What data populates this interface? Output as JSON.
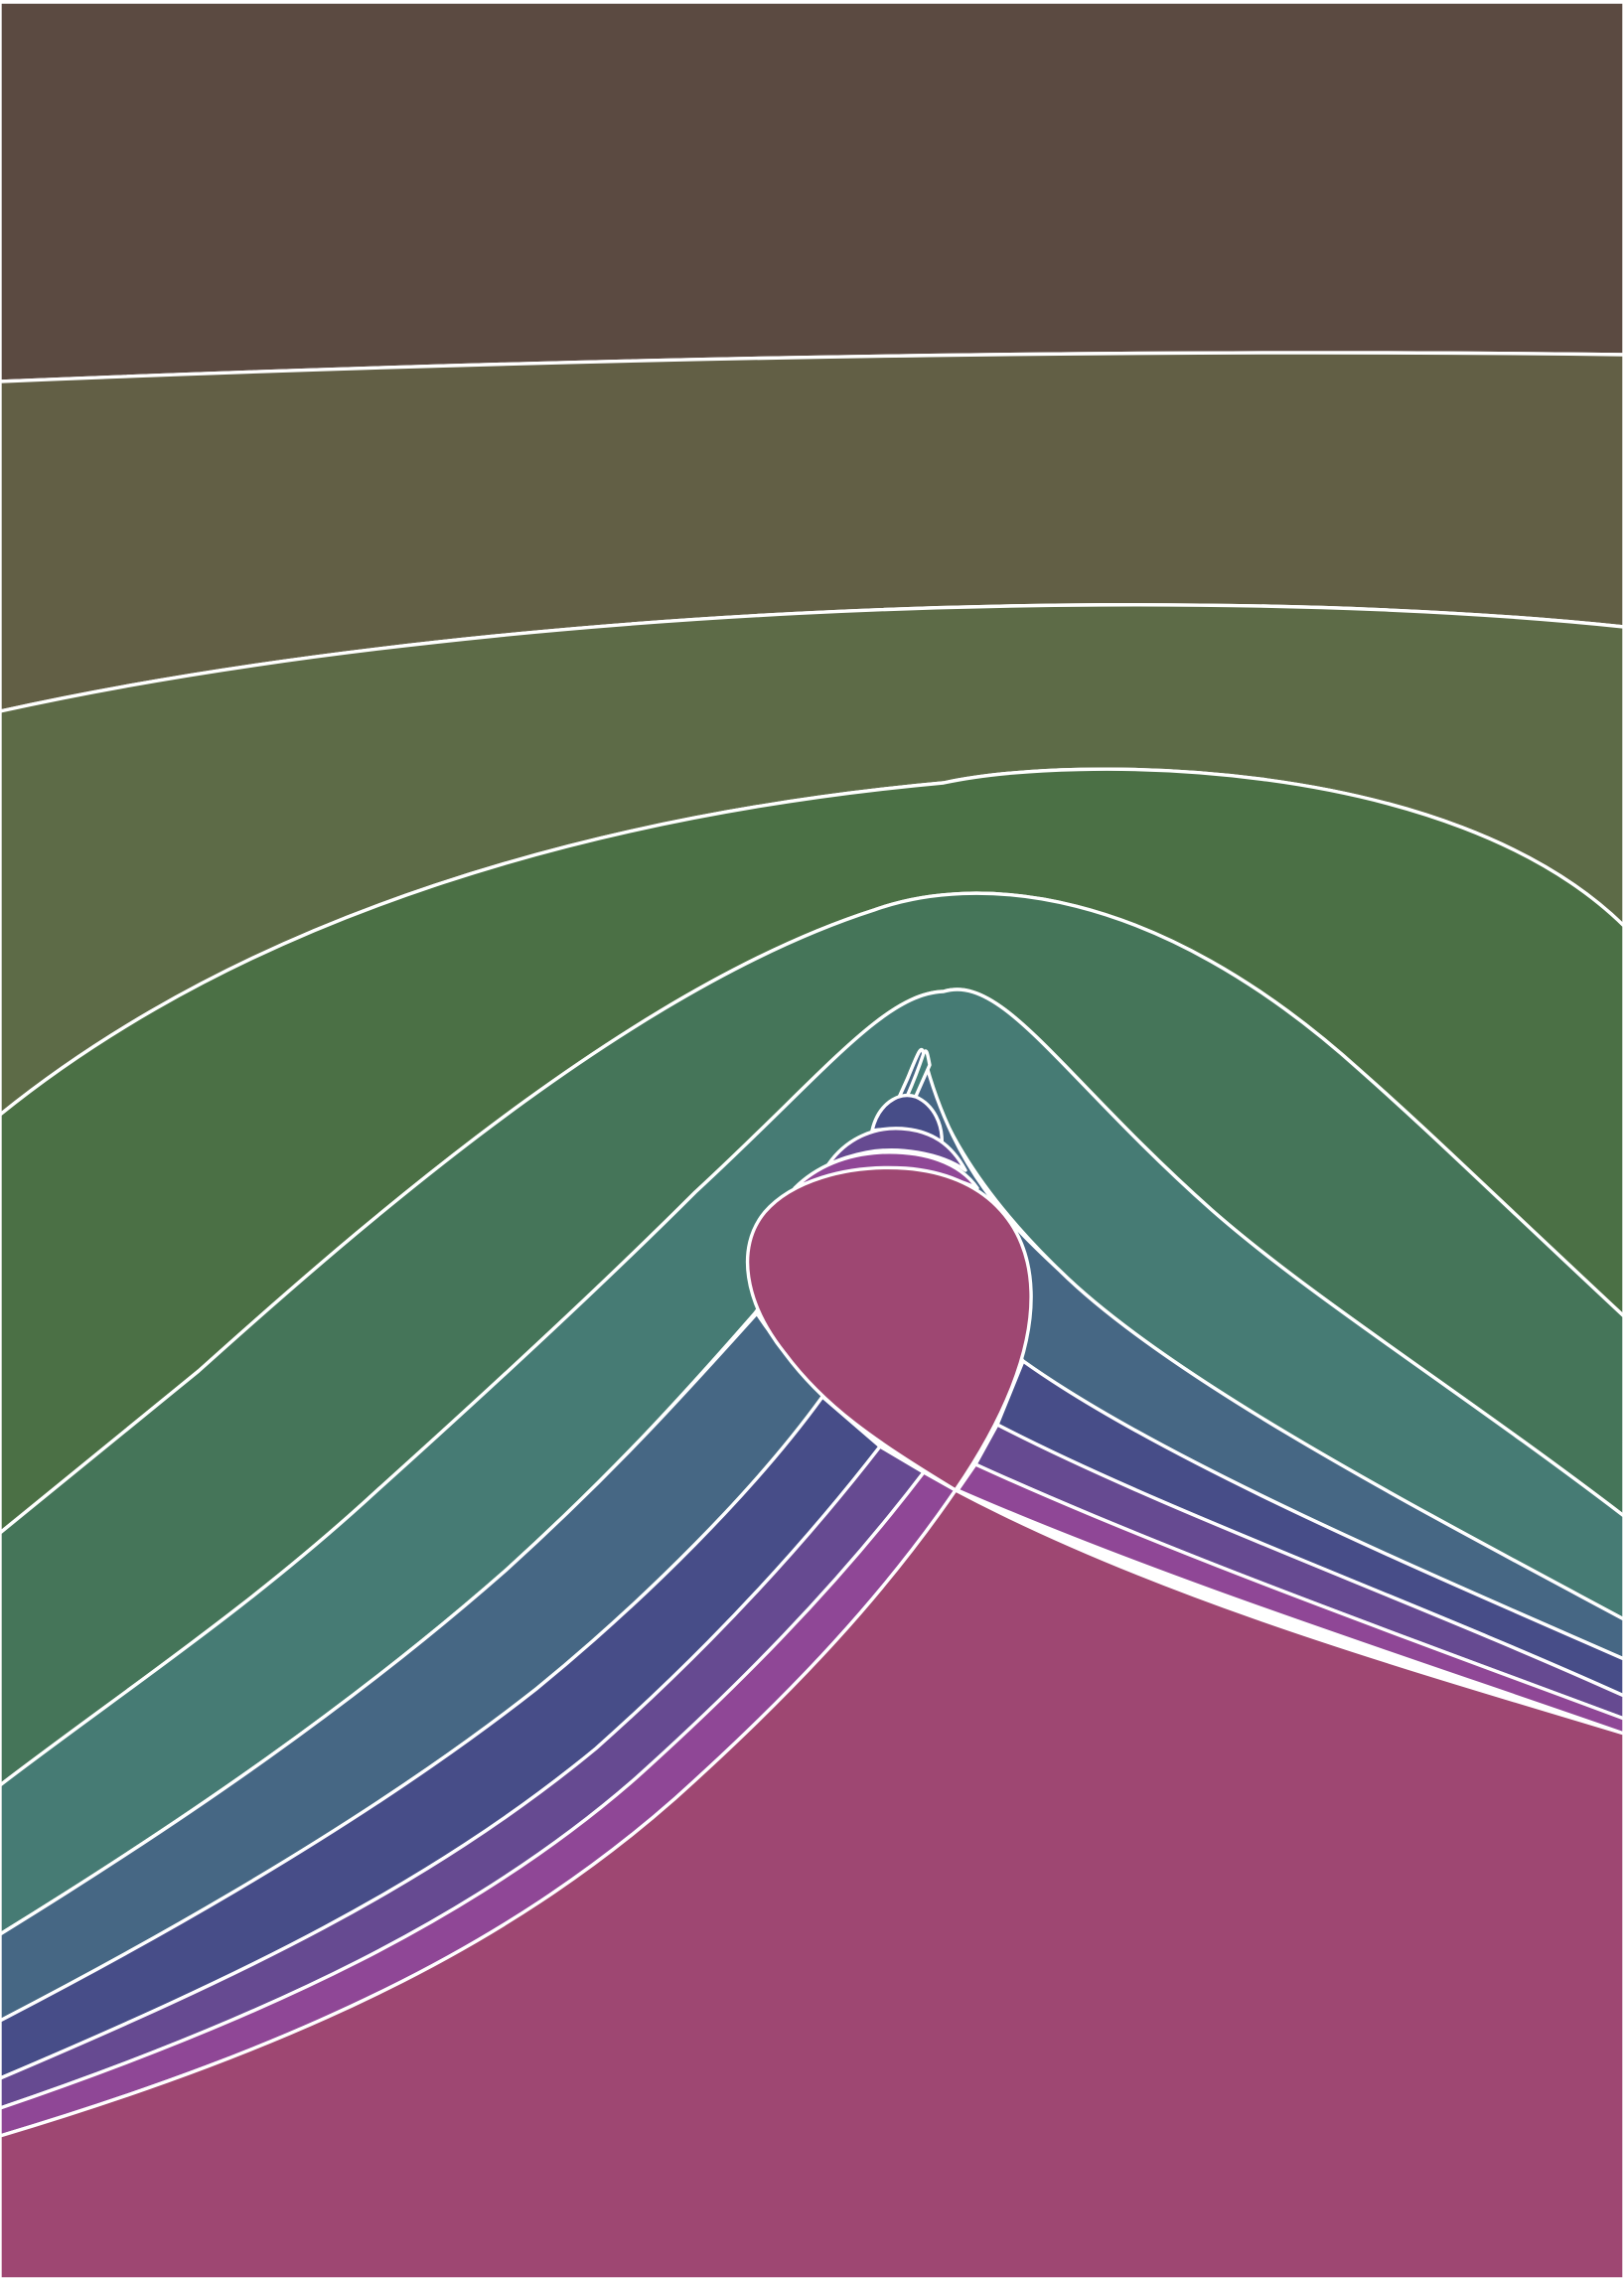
{
  "artwork": {
    "kind": "abstract layered wave illustration",
    "outline_color": "#ffffff",
    "background_color": "#ffffff",
    "bands": [
      {
        "id": "band-1",
        "color": "#5b4a41"
      },
      {
        "id": "band-2",
        "color": "#625f45"
      },
      {
        "id": "band-3",
        "color": "#5d6b47"
      },
      {
        "id": "band-4",
        "color": "#4b7045"
      },
      {
        "id": "band-5",
        "color": "#457559"
      },
      {
        "id": "band-6",
        "color": "#467b74"
      },
      {
        "id": "band-7",
        "color": "#466784"
      },
      {
        "id": "band-8",
        "color": "#474d88"
      },
      {
        "id": "band-9",
        "color": "#664a91"
      },
      {
        "id": "band-10",
        "color": "#8f4796"
      },
      {
        "id": "band-11",
        "color": "#9e4772"
      }
    ],
    "overlap_shapes": [
      {
        "id": "spike-tip",
        "color": "#457f7a"
      },
      {
        "id": "small-dome",
        "color": "#474d88"
      },
      {
        "id": "dome-ring-1",
        "color": "#664a91"
      },
      {
        "id": "dome-ring-2",
        "color": "#8f4796"
      },
      {
        "id": "loop",
        "color": "#9e4772"
      }
    ]
  }
}
